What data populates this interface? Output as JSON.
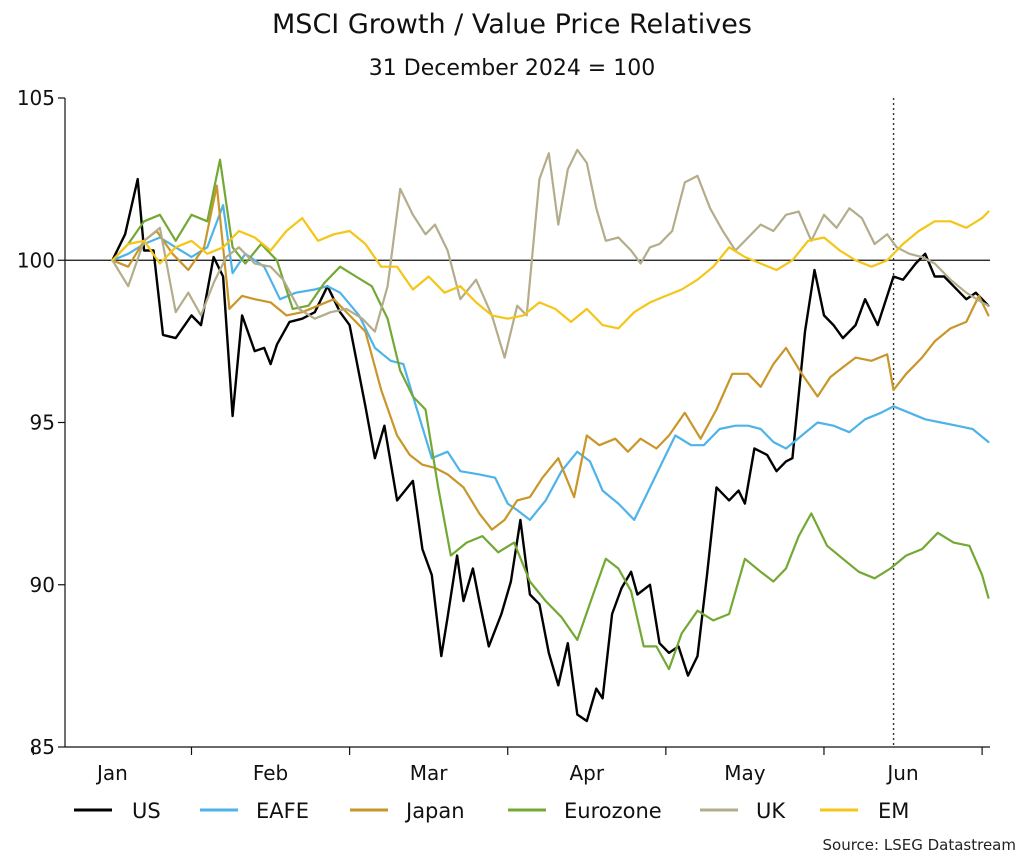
{
  "chart_data": {
    "type": "line",
    "title": "MSCI Growth / Value Price Relatives",
    "subtitle": "31 December 2024 = 100",
    "source": "Source: LSEG Datastream",
    "xlabel": "",
    "ylabel": "",
    "ylim": [
      85,
      105
    ],
    "y_ticks": [
      "85",
      "90",
      "95",
      "100",
      "105"
    ],
    "x_range": [
      -0.3,
      5.55
    ],
    "month_labels": [
      "Jan",
      "Feb",
      "Mar",
      "Apr",
      "May",
      "Jun"
    ],
    "reference_line": 100,
    "vertical_marker": 4.94,
    "series": [
      {
        "name": "US",
        "color": "#000000",
        "x": [
          0.0,
          0.08,
          0.16,
          0.2,
          0.26,
          0.32,
          0.4,
          0.5,
          0.56,
          0.64,
          0.7,
          0.76,
          0.82,
          0.9,
          0.96,
          1.0,
          1.04,
          1.12,
          1.2,
          1.28,
          1.36,
          1.44,
          1.5,
          1.6,
          1.66,
          1.72,
          1.8,
          1.9,
          1.96,
          2.02,
          2.08,
          2.12,
          2.18,
          2.22,
          2.28,
          2.32,
          2.38,
          2.46,
          2.52,
          2.58,
          2.64,
          2.7,
          2.76,
          2.82,
          2.88,
          2.94,
          3.0,
          3.06,
          3.1,
          3.16,
          3.22,
          3.28,
          3.32,
          3.4,
          3.46,
          3.52,
          3.58,
          3.64,
          3.7,
          3.76,
          3.82,
          3.9,
          3.96,
          4.0,
          4.06,
          4.14,
          4.2,
          4.26,
          4.3,
          4.38,
          4.44,
          4.5,
          4.56,
          4.62,
          4.7,
          4.76,
          4.84,
          4.94,
          5.0,
          5.08,
          5.14,
          5.2,
          5.26,
          5.32,
          5.4,
          5.46,
          5.54
        ],
        "y": [
          100.0,
          100.8,
          102.5,
          100.3,
          100.3,
          97.7,
          97.6,
          98.3,
          98.0,
          100.1,
          99.5,
          95.2,
          98.3,
          97.2,
          97.3,
          96.8,
          97.4,
          98.1,
          98.2,
          98.4,
          99.2,
          98.4,
          98.0,
          95.5,
          93.9,
          94.9,
          92.6,
          93.2,
          91.1,
          90.3,
          87.8,
          89.0,
          90.9,
          89.5,
          90.5,
          89.5,
          88.1,
          89.1,
          90.1,
          92.0,
          89.7,
          89.4,
          87.9,
          86.9,
          88.2,
          86.0,
          85.8,
          86.8,
          86.5,
          89.1,
          89.9,
          90.4,
          89.7,
          90.0,
          88.2,
          87.9,
          88.1,
          87.2,
          87.8,
          90.3,
          93.0,
          92.6,
          92.9,
          92.5,
          94.2,
          94.0,
          93.5,
          93.8,
          93.9,
          97.8,
          99.7,
          98.3,
          98.0,
          97.6,
          98.0,
          98.8,
          98.0,
          99.5,
          99.4,
          99.9,
          100.2,
          99.5,
          99.5,
          99.2,
          98.8,
          99.0,
          98.6
        ]
      },
      {
        "name": "EAFE",
        "color": "#4eb3e8",
        "x": [
          0.0,
          0.1,
          0.2,
          0.3,
          0.4,
          0.5,
          0.6,
          0.7,
          0.76,
          0.84,
          0.96,
          1.06,
          1.16,
          1.28,
          1.36,
          1.44,
          1.56,
          1.66,
          1.76,
          1.84,
          1.92,
          2.02,
          2.12,
          2.2,
          2.32,
          2.42,
          2.5,
          2.56,
          2.64,
          2.74,
          2.84,
          2.94,
          3.02,
          3.1,
          3.2,
          3.3,
          3.38,
          3.46,
          3.56,
          3.66,
          3.74,
          3.84,
          3.94,
          4.02,
          4.1,
          4.18,
          4.26,
          4.36,
          4.46,
          4.56,
          4.66,
          4.76,
          4.86,
          4.94,
          5.04,
          5.14,
          5.24,
          5.34,
          5.44,
          5.54
        ],
        "y": [
          100.0,
          100.2,
          100.5,
          100.7,
          100.4,
          100.1,
          100.4,
          101.7,
          99.6,
          100.2,
          99.8,
          98.8,
          99.0,
          99.1,
          99.2,
          99.0,
          98.3,
          97.3,
          96.9,
          96.8,
          95.5,
          93.9,
          94.1,
          93.5,
          93.4,
          93.3,
          92.5,
          92.3,
          92.0,
          92.6,
          93.5,
          94.1,
          93.8,
          92.9,
          92.5,
          92.0,
          92.8,
          93.6,
          94.6,
          94.3,
          94.3,
          94.8,
          94.9,
          94.9,
          94.8,
          94.4,
          94.2,
          94.6,
          95.0,
          94.9,
          94.7,
          95.1,
          95.3,
          95.5,
          95.3,
          95.1,
          95.0,
          94.9,
          94.8,
          94.4
        ]
      },
      {
        "name": "Japan",
        "color": "#c9962a",
        "x": [
          0.0,
          0.1,
          0.2,
          0.28,
          0.38,
          0.48,
          0.58,
          0.66,
          0.74,
          0.82,
          0.9,
          1.0,
          1.1,
          1.2,
          1.3,
          1.4,
          1.5,
          1.6,
          1.7,
          1.8,
          1.88,
          1.96,
          2.04,
          2.12,
          2.22,
          2.32,
          2.4,
          2.48,
          2.56,
          2.64,
          2.72,
          2.82,
          2.92,
          3.0,
          3.08,
          3.18,
          3.26,
          3.34,
          3.44,
          3.52,
          3.62,
          3.72,
          3.82,
          3.92,
          4.02,
          4.1,
          4.18,
          4.26,
          4.36,
          4.46,
          4.54,
          4.62,
          4.7,
          4.8,
          4.9,
          4.94,
          5.02,
          5.12,
          5.2,
          5.3,
          5.4,
          5.48,
          5.54
        ],
        "y": [
          100.0,
          99.8,
          100.6,
          100.9,
          100.2,
          99.7,
          100.4,
          102.3,
          98.5,
          98.9,
          98.8,
          98.7,
          98.3,
          98.4,
          98.6,
          98.8,
          98.3,
          97.8,
          96.0,
          94.6,
          94.0,
          93.7,
          93.6,
          93.4,
          93.0,
          92.2,
          91.7,
          92.0,
          92.6,
          92.7,
          93.3,
          93.9,
          92.7,
          94.6,
          94.3,
          94.5,
          94.1,
          94.5,
          94.2,
          94.6,
          95.3,
          94.5,
          95.4,
          96.5,
          96.5,
          96.1,
          96.8,
          97.3,
          96.5,
          95.8,
          96.4,
          96.7,
          97.0,
          96.9,
          97.1,
          96.0,
          96.5,
          97.0,
          97.5,
          97.9,
          98.1,
          98.9,
          98.3
        ]
      },
      {
        "name": "Eurozone",
        "color": "#74a834",
        "x": [
          0.0,
          0.1,
          0.2,
          0.3,
          0.4,
          0.5,
          0.6,
          0.68,
          0.76,
          0.84,
          0.94,
          1.04,
          1.14,
          1.24,
          1.34,
          1.44,
          1.54,
          1.64,
          1.74,
          1.82,
          1.9,
          1.98,
          2.06,
          2.14,
          2.24,
          2.34,
          2.44,
          2.54,
          2.64,
          2.74,
          2.84,
          2.94,
          3.04,
          3.12,
          3.2,
          3.28,
          3.36,
          3.44,
          3.52,
          3.6,
          3.7,
          3.8,
          3.9,
          4.0,
          4.1,
          4.18,
          4.26,
          4.34,
          4.42,
          4.52,
          4.62,
          4.72,
          4.82,
          4.92,
          5.02,
          5.12,
          5.22,
          5.32,
          5.42,
          5.5,
          5.54
        ],
        "y": [
          100.0,
          100.5,
          101.2,
          101.4,
          100.6,
          101.4,
          101.2,
          103.1,
          100.4,
          99.9,
          100.5,
          100.0,
          98.5,
          98.6,
          99.3,
          99.8,
          99.5,
          99.2,
          98.2,
          96.6,
          95.8,
          95.4,
          93.0,
          90.9,
          91.3,
          91.5,
          91.0,
          91.3,
          90.1,
          89.5,
          89.0,
          88.3,
          89.7,
          90.8,
          90.5,
          89.8,
          88.1,
          88.1,
          87.4,
          88.5,
          89.2,
          88.9,
          89.1,
          90.8,
          90.4,
          90.1,
          90.5,
          91.5,
          92.2,
          91.2,
          90.8,
          90.4,
          90.2,
          90.5,
          90.9,
          91.1,
          91.6,
          91.3,
          91.2,
          90.3,
          89.6
        ]
      },
      {
        "name": "UK",
        "color": "#b3ad8c",
        "x": [
          0.0,
          0.1,
          0.2,
          0.3,
          0.4,
          0.48,
          0.56,
          0.64,
          0.72,
          0.8,
          0.9,
          1.0,
          1.08,
          1.18,
          1.28,
          1.38,
          1.48,
          1.58,
          1.66,
          1.74,
          1.82,
          1.9,
          1.98,
          2.04,
          2.12,
          2.2,
          2.3,
          2.4,
          2.48,
          2.56,
          2.62,
          2.7,
          2.76,
          2.82,
          2.88,
          2.94,
          3.0,
          3.06,
          3.12,
          3.2,
          3.28,
          3.34,
          3.4,
          3.46,
          3.54,
          3.62,
          3.7,
          3.78,
          3.86,
          3.94,
          4.02,
          4.1,
          4.18,
          4.26,
          4.34,
          4.42,
          4.5,
          4.58,
          4.66,
          4.74,
          4.82,
          4.9,
          4.96,
          5.04,
          5.12,
          5.2,
          5.3,
          5.4,
          5.5,
          5.54
        ],
        "y": [
          100.0,
          99.2,
          100.6,
          101.0,
          98.4,
          99.0,
          98.3,
          99.3,
          100.1,
          100.4,
          99.9,
          99.8,
          99.4,
          98.5,
          98.2,
          98.4,
          98.5,
          98.2,
          97.8,
          99.2,
          102.2,
          101.4,
          100.8,
          101.1,
          100.3,
          98.8,
          99.4,
          98.3,
          97.0,
          98.6,
          98.3,
          102.5,
          103.3,
          101.1,
          102.8,
          103.4,
          103.0,
          101.6,
          100.6,
          100.7,
          100.3,
          99.9,
          100.4,
          100.5,
          100.9,
          102.4,
          102.6,
          101.6,
          100.9,
          100.3,
          100.7,
          101.1,
          100.9,
          101.4,
          101.5,
          100.6,
          101.4,
          101.0,
          101.6,
          101.3,
          100.5,
          100.8,
          100.4,
          100.2,
          100.1,
          99.9,
          99.4,
          99.0,
          98.7,
          98.6
        ]
      },
      {
        "name": "EM",
        "color": "#f5c518",
        "x": [
          0.0,
          0.1,
          0.2,
          0.3,
          0.4,
          0.5,
          0.6,
          0.7,
          0.8,
          0.9,
          1.0,
          1.1,
          1.2,
          1.3,
          1.4,
          1.5,
          1.6,
          1.7,
          1.8,
          1.9,
          2.0,
          2.1,
          2.2,
          2.3,
          2.4,
          2.5,
          2.6,
          2.7,
          2.8,
          2.9,
          3.0,
          3.1,
          3.2,
          3.3,
          3.4,
          3.5,
          3.6,
          3.7,
          3.8,
          3.9,
          4.0,
          4.1,
          4.2,
          4.3,
          4.4,
          4.5,
          4.6,
          4.7,
          4.8,
          4.9,
          5.0,
          5.1,
          5.2,
          5.3,
          5.4,
          5.5,
          5.54
        ],
        "y": [
          100.0,
          100.5,
          100.6,
          99.9,
          100.4,
          100.6,
          100.2,
          100.4,
          100.9,
          100.7,
          100.3,
          100.9,
          101.3,
          100.6,
          100.8,
          100.9,
          100.5,
          99.8,
          99.8,
          99.1,
          99.5,
          99.0,
          99.2,
          98.7,
          98.3,
          98.2,
          98.3,
          98.7,
          98.5,
          98.1,
          98.5,
          98.0,
          97.9,
          98.4,
          98.7,
          98.9,
          99.1,
          99.4,
          99.8,
          100.4,
          100.1,
          99.9,
          99.7,
          100.0,
          100.6,
          100.7,
          100.3,
          100.0,
          99.8,
          100.0,
          100.5,
          100.9,
          101.2,
          101.2,
          101.0,
          101.3,
          101.5
        ]
      }
    ]
  }
}
